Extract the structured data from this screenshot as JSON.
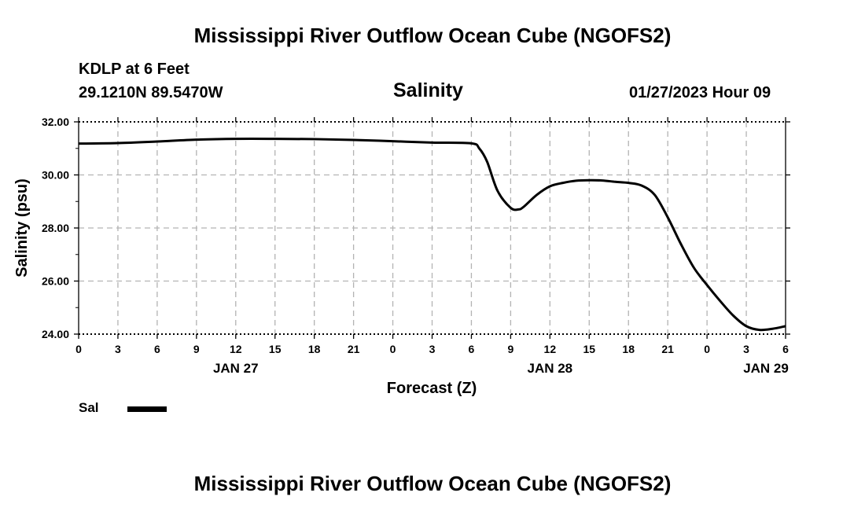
{
  "header": {
    "title": "Mississippi River Outflow Ocean Cube (NGOFS2)",
    "station": "KDLP at 6 Feet",
    "coords": "29.1210N  89.5470W",
    "variable": "Salinity",
    "datetime": "01/27/2023 Hour 09"
  },
  "footer": {
    "title": "Mississippi River Outflow Ocean Cube (NGOFS2)"
  },
  "legend": {
    "label": "Sal",
    "color": "#000000"
  },
  "chart_data": {
    "type": "line",
    "title": "Salinity",
    "xlabel": "Forecast (Z)",
    "ylabel": "Salinity (psu)",
    "xlim": [
      0,
      54
    ],
    "ylim": [
      24,
      32
    ],
    "y_ticks": [
      "24.00",
      "26.00",
      "28.00",
      "30.00",
      "32.00"
    ],
    "y_tick_values": [
      24,
      26,
      28,
      30,
      32
    ],
    "x_ticks": [
      0,
      3,
      6,
      9,
      12,
      15,
      18,
      21,
      24,
      27,
      30,
      33,
      36,
      39,
      42,
      45,
      48,
      51,
      54
    ],
    "x_tick_labels": [
      "0",
      "3",
      "6",
      "9",
      "12",
      "15",
      "18",
      "21",
      "0",
      "3",
      "6",
      "9",
      "12",
      "15",
      "18",
      "21",
      "0",
      "3",
      "6"
    ],
    "date_labels": [
      {
        "label": "JAN 27",
        "hour": 12
      },
      {
        "label": "JAN 28",
        "hour": 36
      },
      {
        "label": "JAN 29",
        "hour": 52.5
      }
    ],
    "grid": true,
    "series": [
      {
        "name": "Sal",
        "color": "#000000",
        "x": [
          0,
          3,
          6,
          9,
          12,
          15,
          18,
          21,
          24,
          27,
          30,
          30.6,
          31.2,
          32,
          33,
          33.6,
          34,
          35,
          36,
          37,
          38,
          39,
          40,
          41,
          42,
          43,
          44,
          45,
          46,
          47,
          48,
          49,
          50,
          51,
          52,
          53,
          54
        ],
        "y": [
          31.18,
          31.2,
          31.26,
          31.33,
          31.36,
          31.36,
          31.35,
          31.32,
          31.27,
          31.22,
          31.19,
          31.0,
          30.5,
          29.4,
          28.76,
          28.7,
          28.8,
          29.25,
          29.57,
          29.7,
          29.78,
          29.8,
          29.79,
          29.74,
          29.7,
          29.6,
          29.25,
          28.4,
          27.4,
          26.5,
          25.85,
          25.25,
          24.7,
          24.3,
          24.16,
          24.2,
          24.3
        ]
      }
    ]
  }
}
